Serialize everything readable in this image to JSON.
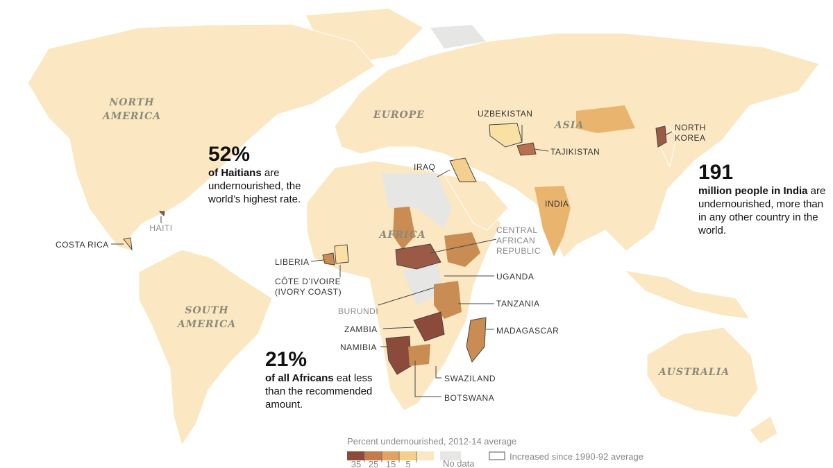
{
  "continents": [
    [
      "NORTH",
      "AMERICA"
    ],
    [
      "EUROPE"
    ],
    [
      "ASIA"
    ],
    [
      "AFRICA"
    ],
    [
      "SOUTH",
      "AMERICA"
    ],
    [
      "AUSTRALIA"
    ]
  ],
  "countries": [
    [
      "UZBEKISTAN"
    ],
    [
      "TAJIKISTAN"
    ],
    [
      "NORTH",
      "KOREA"
    ],
    [
      "IRAQ"
    ],
    [
      "INDIA"
    ],
    [
      "HAITI"
    ],
    [
      "COSTA RICA"
    ],
    [
      "LIBERIA"
    ],
    [
      "CÔTE D’IVOIRE",
      "(IVORY COAST)"
    ],
    [
      "CENTRAL",
      "AFRICAN",
      "REPUBLIC"
    ],
    [
      "UGANDA"
    ],
    [
      "TANZANIA"
    ],
    [
      "BURUNDI"
    ],
    [
      "ZAMBIA"
    ],
    [
      "NAMIBIA"
    ],
    [
      "MADAGASCAR"
    ],
    [
      "SWAZILAND"
    ],
    [
      "BOTSWANA"
    ]
  ],
  "callouts": [
    {
      "number": "52%",
      "bold": "of Haitians",
      "text": " are undernourished, the world’s highest rate."
    },
    {
      "number": "191",
      "bold": "million people in India",
      "text": " are undernourished, more than in any other country in the world."
    },
    {
      "number": "21%",
      "bold": "of all Africans",
      "text": " eat less than the recom­mended amount."
    }
  ],
  "legend": {
    "title": "Percent undernourished, 2012-14 average",
    "ticks": [
      35,
      25,
      15,
      5
    ],
    "no_data": "No data",
    "increased": "Increased since 1990-92 average"
  }
}
